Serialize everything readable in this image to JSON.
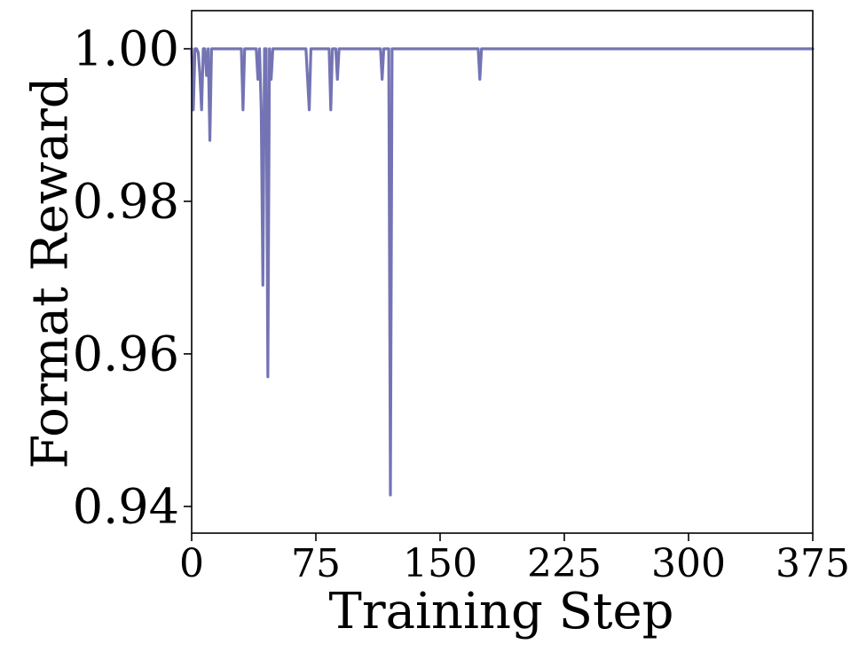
{
  "chart_data": {
    "type": "line",
    "title": "",
    "xlabel": "Training Step",
    "ylabel": "Format Reward",
    "xlim": [
      0,
      375
    ],
    "ylim": [
      0.9365,
      1.005
    ],
    "xticks": [
      0,
      75,
      150,
      225,
      300,
      375
    ],
    "xtick_labels": [
      "0",
      "75",
      "150",
      "225",
      "300",
      "375"
    ],
    "yticks": [
      0.94,
      0.96,
      0.98,
      1.0
    ],
    "ytick_labels": [
      "0.94",
      "0.96",
      "0.98",
      "1.00"
    ],
    "grid": false,
    "legend": "none",
    "line_color": "#7474b4",
    "series": [
      {
        "x": [
          0,
          1,
          2,
          3,
          4,
          5,
          6,
          7,
          8,
          9,
          10,
          11,
          12,
          13,
          14,
          30,
          31,
          32,
          39,
          40,
          41,
          42,
          43,
          44,
          45,
          46,
          47,
          48,
          49,
          50,
          51,
          52,
          69,
          70,
          71,
          72,
          73,
          74,
          83,
          84,
          85,
          87,
          88,
          89,
          114,
          115,
          116,
          119,
          120,
          121,
          122,
          173,
          174,
          175,
          375
        ],
        "y": [
          1.0,
          0.992,
          1.0,
          1.0,
          0.9995,
          0.9965,
          0.992,
          1.0,
          1.0,
          0.9965,
          1.0,
          0.988,
          1.0,
          1.0,
          1.0,
          1.0,
          0.992,
          1.0,
          1.0,
          0.996,
          1.0,
          0.992,
          0.969,
          1.0,
          1.0,
          0.957,
          1.0,
          0.996,
          1.0,
          1.0,
          1.0,
          1.0,
          1.0,
          0.996,
          0.992,
          1.0,
          1.0,
          1.0,
          1.0,
          0.992,
          1.0,
          1.0,
          0.996,
          1.0,
          1.0,
          0.996,
          1.0,
          1.0,
          0.9415,
          1.0,
          1.0,
          1.0,
          0.996,
          1.0,
          1.0
        ]
      }
    ]
  }
}
